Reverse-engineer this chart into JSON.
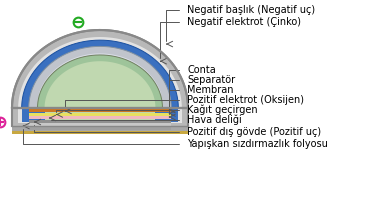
{
  "labels": [
    "Negatif başlık (Negatif uç)",
    "Negatif elektrot (Çinko)",
    "Conta",
    "Separatör",
    "Membran",
    "Pozitif elektrot (Oksijen)",
    "Kağıt geçirgen",
    "Hava deliği",
    "Pozitif dış gövde (Pozitif uç)",
    "Yapışkan sızdırmazlık folyosu"
  ],
  "minus_symbol": "⊖",
  "plus_symbol": "⊕",
  "font_size": 7.0,
  "line_color": "#555555",
  "text_color": "#000000",
  "outer_shell_color": "#b8b8b8",
  "outer_shell_edge": "#888888",
  "inner_shell_color": "#d8d8d8",
  "blue_color": "#3a70c0",
  "zinc_color": "#c0c4cc",
  "zinc_highlight": "#e0e4ee",
  "green_dark": "#9ec49a",
  "green_light": "#c0d8b0",
  "orange_color": "#cc7722",
  "yellow_color": "#e8e060",
  "pink_color": "#f0b8c0",
  "dark_gray": "#707070",
  "silver_color": "#b0b8b8",
  "gold_color": "#c8a840"
}
